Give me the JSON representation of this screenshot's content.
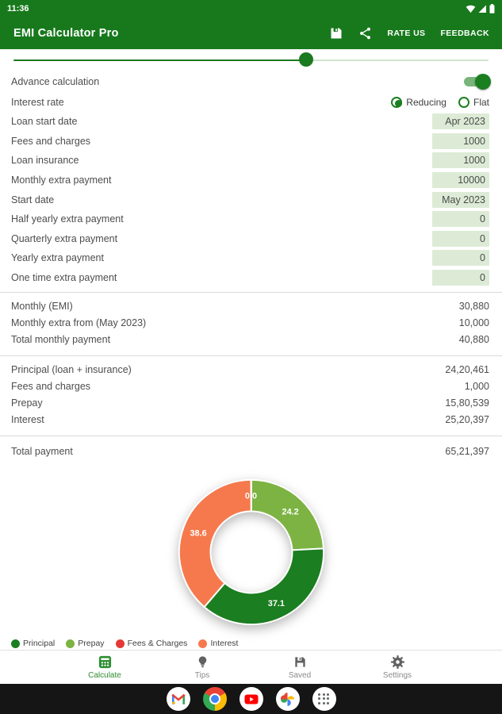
{
  "status_bar": {
    "time": "11:36"
  },
  "app_bar": {
    "title": "EMI Calculator Pro",
    "rate_us": "RATE US",
    "feedback": "FEEDBACK"
  },
  "form": {
    "slider_percent": 61.6,
    "advance_calculation": {
      "label": "Advance calculation",
      "enabled": true
    },
    "interest_rate": {
      "label": "Interest rate",
      "options": [
        "Reducing",
        "Flat"
      ],
      "selected": "Reducing"
    },
    "fields": [
      {
        "label": "Loan start date",
        "value": "Apr 2023"
      },
      {
        "label": "Fees and charges",
        "value": "1000"
      },
      {
        "label": "Loan insurance",
        "value": "1000"
      },
      {
        "label": "Monthly extra payment",
        "value": "10000"
      },
      {
        "label": "Start date",
        "value": "May 2023"
      },
      {
        "label": "Half yearly extra payment",
        "value": "0"
      },
      {
        "label": "Quarterly extra payment",
        "value": "0"
      },
      {
        "label": "Yearly extra payment",
        "value": "0"
      },
      {
        "label": "One time extra payment",
        "value": "0"
      }
    ]
  },
  "results": {
    "monthly": [
      {
        "label": "Monthly (EMI)",
        "value": "30,880"
      },
      {
        "label": "Monthly extra from (May 2023)",
        "value": "10,000"
      },
      {
        "label": "Total monthly payment",
        "value": "40,880"
      }
    ],
    "breakdown": [
      {
        "label": "Principal (loan + insurance)",
        "value": "24,20,461"
      },
      {
        "label": "Fees and charges",
        "value": "1,000"
      },
      {
        "label": "Prepay",
        "value": "15,80,539"
      },
      {
        "label": "Interest",
        "value": "25,20,397"
      }
    ],
    "total": {
      "label": "Total payment",
      "value": "65,21,397"
    }
  },
  "chart_data": {
    "type": "pie",
    "donut": true,
    "values_are": "percent",
    "direction": "clockwise",
    "start_angle_deg": 0,
    "slices": [
      {
        "label": "Prepay",
        "value": 24.2,
        "color": "#7cb342"
      },
      {
        "label": "Principal",
        "value": 37.1,
        "color": "#1b7e20"
      },
      {
        "label": "Interest",
        "value": 38.6,
        "color": "#f5794d"
      },
      {
        "label": "Fees & Charges",
        "value": 0.0,
        "color": "#e53935"
      }
    ],
    "slice_label_color": "#ffffff",
    "legend_position": "bottom-left",
    "legend": [
      {
        "label": "Principal",
        "color": "#1b7e20"
      },
      {
        "label": "Prepay",
        "color": "#7cb342"
      },
      {
        "label": "Fees & Charges",
        "color": "#e53935"
      },
      {
        "label": "Interest",
        "color": "#f5794d"
      }
    ]
  },
  "bottom_nav": {
    "items": [
      {
        "label": "Calculate",
        "active": true
      },
      {
        "label": "Tips",
        "active": false
      },
      {
        "label": "Saved",
        "active": false
      },
      {
        "label": "Settings",
        "active": false
      }
    ]
  },
  "dock": {
    "apps": [
      "Gmail",
      "Chrome",
      "YouTube",
      "Photos",
      "All apps"
    ]
  },
  "colors": {
    "primary_green": "#17791c",
    "field_bg": "#ddebd6",
    "nav_active": "#2e8b2e"
  }
}
